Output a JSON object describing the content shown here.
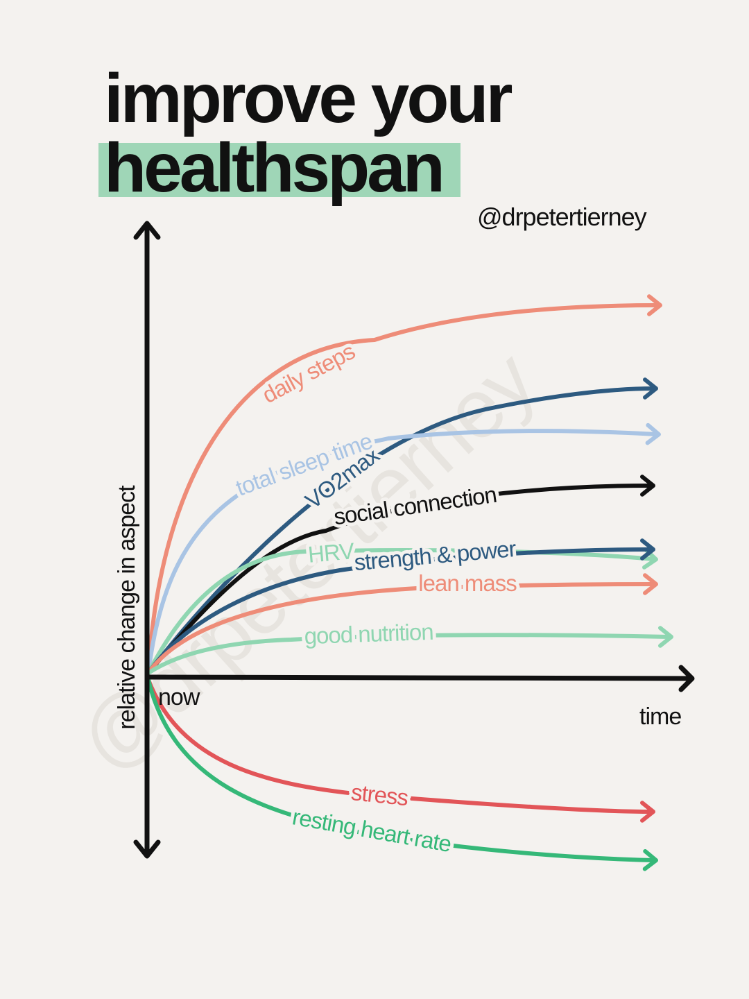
{
  "title": {
    "line1": "improve your",
    "line2": "healthspan",
    "highlight_color": "#8fd1ad"
  },
  "handle": "@drpetertierney",
  "chart_data": {
    "type": "line",
    "y_axis_label": "relative change in aspect",
    "x_axis_label": "time",
    "origin_label": "now",
    "watermark": "@drpetertierney",
    "series": [
      {
        "name": "daily steps",
        "color": "#ee8c78",
        "direction": "increase",
        "relative_level": 1.0
      },
      {
        "name": "VO2max",
        "color": "#2d5a80",
        "direction": "increase",
        "relative_level": 0.78
      },
      {
        "name": "total sleep time",
        "color": "#a9c4e4",
        "direction": "increase",
        "relative_level": 0.65
      },
      {
        "name": "social connection",
        "color": "#111111",
        "direction": "increase",
        "relative_level": 0.52
      },
      {
        "name": "HRV",
        "color": "#8fd6b1",
        "direction": "increase",
        "relative_level": 0.32
      },
      {
        "name": "strength & power",
        "color": "#2d5a80",
        "direction": "increase",
        "relative_level": 0.34
      },
      {
        "name": "lean mass",
        "color": "#ee8c78",
        "direction": "increase",
        "relative_level": 0.25
      },
      {
        "name": "good nutrition",
        "color": "#8fd6b1",
        "direction": "increase",
        "relative_level": 0.11
      },
      {
        "name": "stress",
        "color": "#e25558",
        "direction": "decrease",
        "relative_level": -0.36
      },
      {
        "name": "resting heart rate",
        "color": "#35b878",
        "direction": "decrease",
        "relative_level": -0.49
      }
    ]
  }
}
